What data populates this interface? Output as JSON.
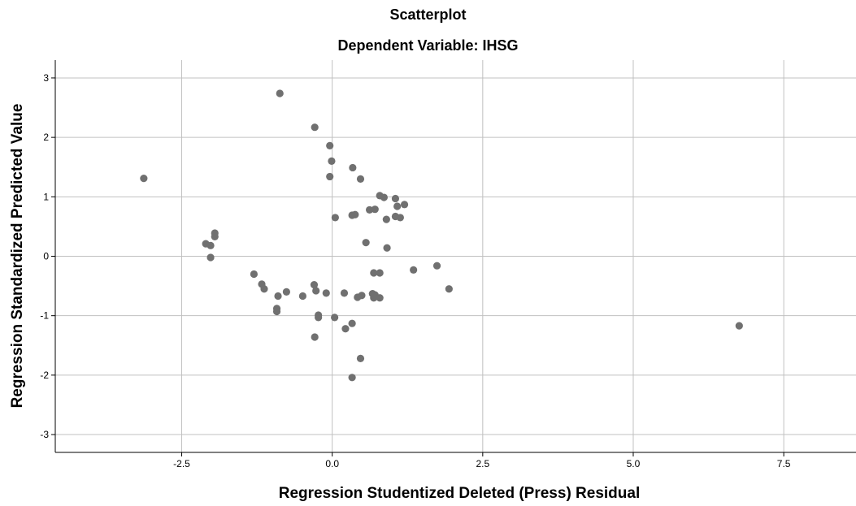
{
  "chart_data": {
    "type": "scatter",
    "title": "Scatterplot",
    "subtitle": "Dependent Variable: IHSG",
    "xlabel": "Regression Studentized Deleted (Press) Residual",
    "ylabel": "Regression Standardized Predicted Value",
    "xlim": [
      -4.6,
      8.7
    ],
    "ylim": [
      -3.3,
      3.3
    ],
    "xticks": [
      -2.5,
      0.0,
      2.5,
      5.0,
      7.5
    ],
    "xtick_labels": [
      "-2.5",
      "0.0",
      "2.5",
      "5.0",
      "7.5"
    ],
    "yticks": [
      -3,
      -2,
      -1,
      0,
      1,
      2,
      3
    ],
    "ytick_labels": [
      "-3",
      "-2",
      "-1",
      "0",
      "1",
      "2",
      "3"
    ],
    "grid": true,
    "point_color": "#707070",
    "points": [
      {
        "x": -3.13,
        "y": 1.31
      },
      {
        "x": -0.87,
        "y": 2.74
      },
      {
        "x": -0.29,
        "y": 2.17
      },
      {
        "x": -0.04,
        "y": 1.86
      },
      {
        "x": -0.01,
        "y": 1.6
      },
      {
        "x": -0.04,
        "y": 1.34
      },
      {
        "x": 0.34,
        "y": 1.49
      },
      {
        "x": 0.47,
        "y": 1.3
      },
      {
        "x": 0.79,
        "y": 1.02
      },
      {
        "x": 0.86,
        "y": 0.99
      },
      {
        "x": 1.05,
        "y": 0.97
      },
      {
        "x": 1.08,
        "y": 0.84
      },
      {
        "x": 1.2,
        "y": 0.87
      },
      {
        "x": 0.62,
        "y": 0.78
      },
      {
        "x": 0.71,
        "y": 0.79
      },
      {
        "x": 0.33,
        "y": 0.69
      },
      {
        "x": 0.38,
        "y": 0.7
      },
      {
        "x": 0.05,
        "y": 0.65
      },
      {
        "x": 1.05,
        "y": 0.67
      },
      {
        "x": 1.13,
        "y": 0.65
      },
      {
        "x": 0.9,
        "y": 0.62
      },
      {
        "x": 0.56,
        "y": 0.23
      },
      {
        "x": 0.91,
        "y": 0.14
      },
      {
        "x": -1.95,
        "y": 0.39
      },
      {
        "x": -1.95,
        "y": 0.33
      },
      {
        "x": -2.1,
        "y": 0.21
      },
      {
        "x": -2.02,
        "y": 0.18
      },
      {
        "x": -2.02,
        "y": -0.02
      },
      {
        "x": -1.3,
        "y": -0.3
      },
      {
        "x": -1.17,
        "y": -0.47
      },
      {
        "x": -1.13,
        "y": -0.55
      },
      {
        "x": -0.76,
        "y": -0.6
      },
      {
        "x": -0.9,
        "y": -0.67
      },
      {
        "x": -0.49,
        "y": -0.67
      },
      {
        "x": -0.3,
        "y": -0.48
      },
      {
        "x": -0.27,
        "y": -0.58
      },
      {
        "x": -0.1,
        "y": -0.62
      },
      {
        "x": -0.92,
        "y": -0.88
      },
      {
        "x": -0.92,
        "y": -0.93
      },
      {
        "x": 0.2,
        "y": -0.62
      },
      {
        "x": 0.69,
        "y": -0.28
      },
      {
        "x": 0.79,
        "y": -0.28
      },
      {
        "x": 1.35,
        "y": -0.23
      },
      {
        "x": 1.74,
        "y": -0.16
      },
      {
        "x": 1.94,
        "y": -0.55
      },
      {
        "x": 0.67,
        "y": -0.63
      },
      {
        "x": 0.71,
        "y": -0.65
      },
      {
        "x": 0.69,
        "y": -0.7
      },
      {
        "x": 0.49,
        "y": -0.66
      },
      {
        "x": 0.42,
        "y": -0.69
      },
      {
        "x": 0.79,
        "y": -0.7
      },
      {
        "x": -0.23,
        "y": -0.99
      },
      {
        "x": -0.23,
        "y": -1.03
      },
      {
        "x": 0.04,
        "y": -1.03
      },
      {
        "x": 0.33,
        "y": -1.13
      },
      {
        "x": 0.22,
        "y": -1.22
      },
      {
        "x": -0.29,
        "y": -1.36
      },
      {
        "x": 0.47,
        "y": -1.72
      },
      {
        "x": 0.33,
        "y": -2.04
      },
      {
        "x": 6.76,
        "y": -1.17
      }
    ]
  }
}
